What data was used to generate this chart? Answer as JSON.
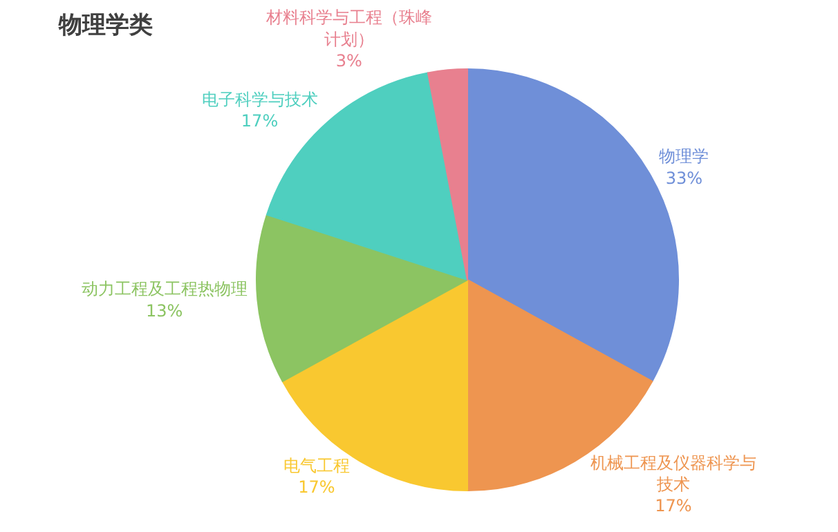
{
  "chart_data": {
    "type": "pie",
    "title": "物理学类",
    "categories": [
      "物理学",
      "机械工程及仪器科学与技术",
      "电气工程",
      "动力工程及工程热物理",
      "电子科学与技术",
      "材料科学与工程（珠峰计划）"
    ],
    "values": [
      33,
      17,
      17,
      13,
      17,
      3
    ],
    "value_labels": [
      "33%",
      "17%",
      "17%",
      "13%",
      "17%",
      "3%"
    ],
    "colors": [
      "#6f8fd8",
      "#ee9550",
      "#f9c830",
      "#8cc462",
      "#4fcfbf",
      "#e8808f"
    ],
    "legend": false
  }
}
